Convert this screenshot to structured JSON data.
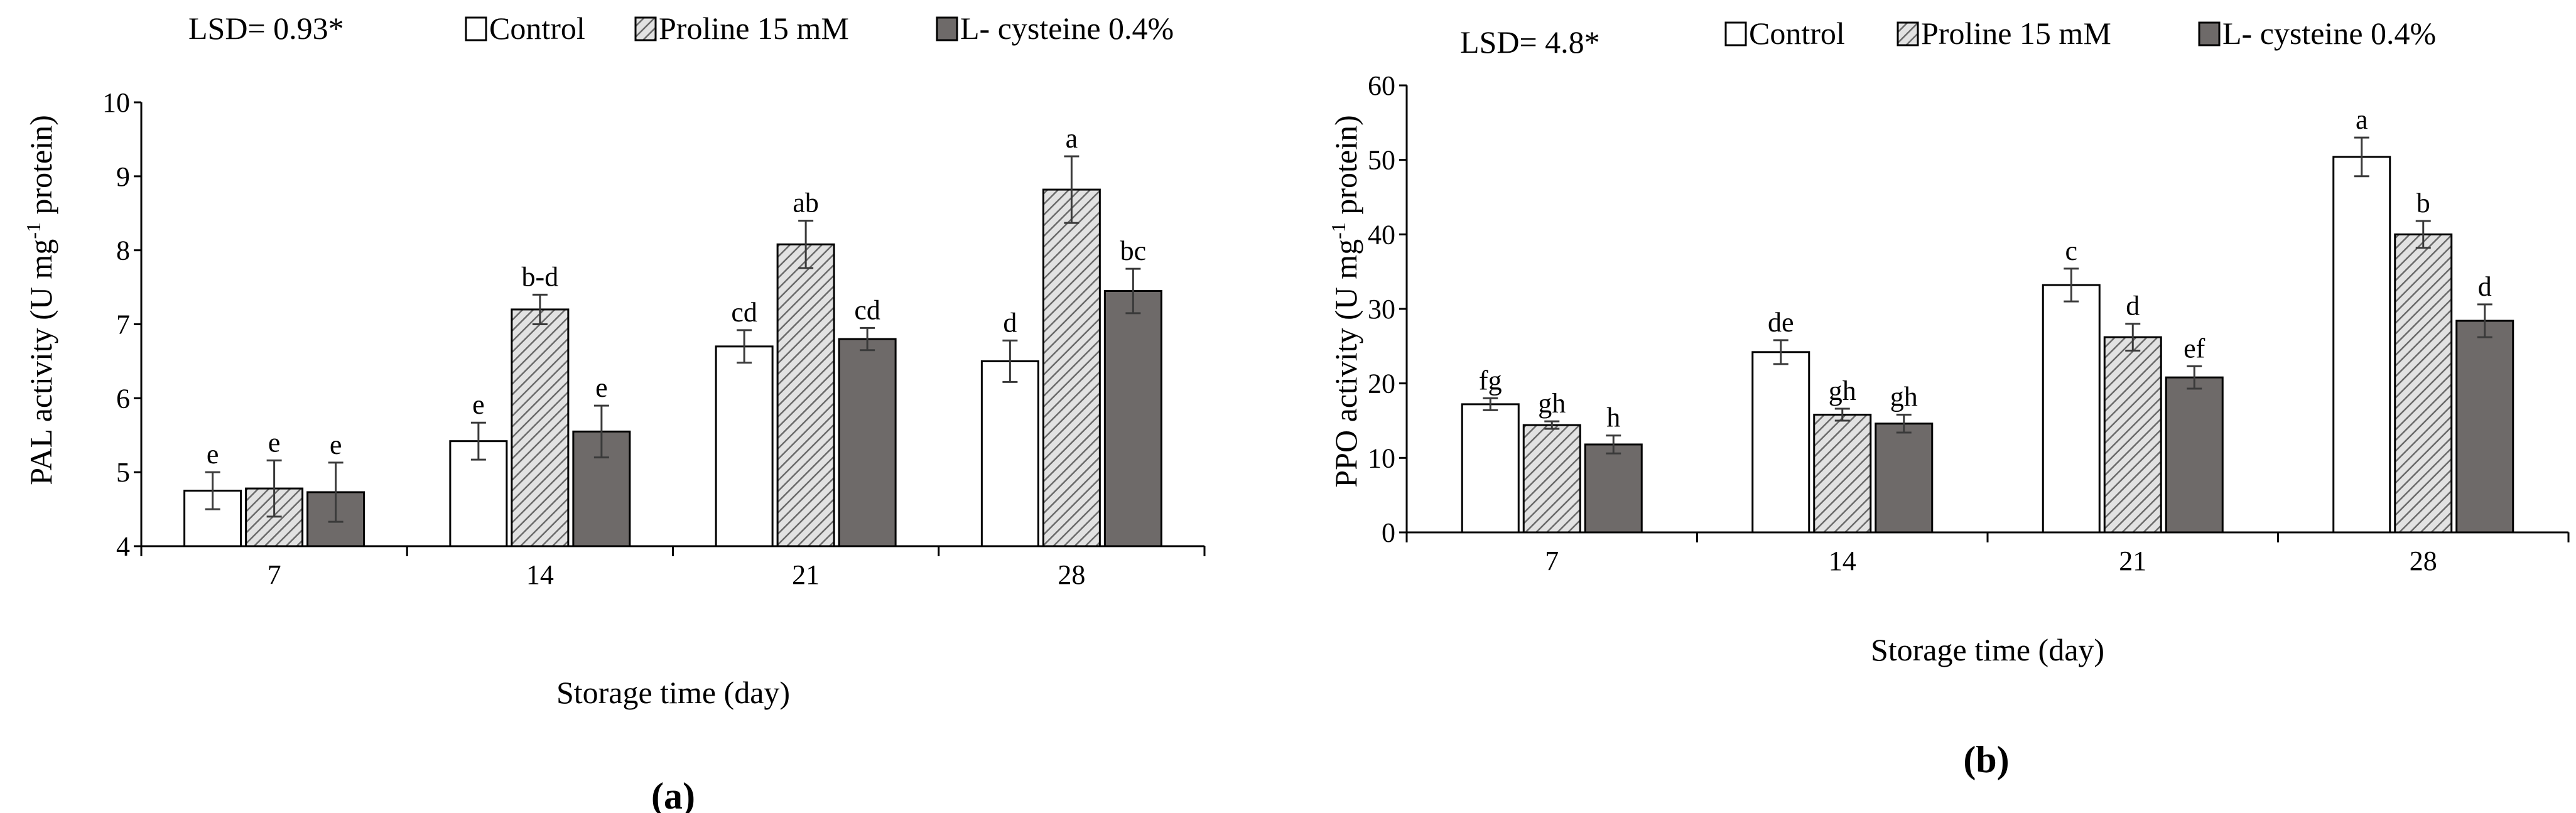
{
  "legend": {
    "items": [
      {
        "name": "Control",
        "label": "Control",
        "fill": "#ffffff"
      },
      {
        "name": "Proline",
        "label": "Proline 15 mM",
        "fill": "hatch"
      },
      {
        "name": "Cysteine",
        "label": "L- cysteine 0.4%",
        "fill": "#6e6a69"
      }
    ]
  },
  "chart_data": [
    {
      "type": "bar",
      "panel": "(a)",
      "lsd": "LSD= 0.93*",
      "title": "",
      "xlabel": "Storage time (day)",
      "ylabel": {
        "pre": "PAL activity  (U mg",
        "sup": "-1",
        "post": " protein)"
      },
      "categories": [
        "7",
        "14",
        "21",
        "28"
      ],
      "ylim": [
        4,
        10
      ],
      "yticks": [
        4,
        5,
        6,
        7,
        8,
        9,
        10
      ],
      "series": [
        {
          "name": "Control",
          "values": [
            4.75,
            5.42,
            6.7,
            6.5
          ],
          "errors": [
            0.25,
            0.25,
            0.22,
            0.28
          ],
          "labels": [
            "e",
            "e",
            "cd",
            "d"
          ]
        },
        {
          "name": "Proline 15 mM",
          "values": [
            4.78,
            7.2,
            8.08,
            8.82
          ],
          "errors": [
            0.38,
            0.2,
            0.32,
            0.45
          ],
          "labels": [
            "e",
            "b-d",
            "ab",
            "a"
          ]
        },
        {
          "name": "L- cysteine 0.4%",
          "values": [
            4.73,
            5.55,
            6.8,
            7.45
          ],
          "errors": [
            0.4,
            0.35,
            0.15,
            0.3
          ],
          "labels": [
            "e",
            "e",
            "cd",
            "bc"
          ]
        }
      ]
    },
    {
      "type": "bar",
      "panel": "(b)",
      "lsd": "LSD= 4.8*",
      "title": "",
      "xlabel": "Storage  time (day)",
      "ylabel": {
        "pre": "PPO activity (U mg",
        "sup": "-1",
        "post": " protein)"
      },
      "categories": [
        "7",
        "14",
        "21",
        "28"
      ],
      "ylim": [
        0,
        60
      ],
      "yticks": [
        0,
        10,
        20,
        30,
        40,
        50,
        60
      ],
      "series": [
        {
          "name": "Control",
          "values": [
            17.2,
            24.2,
            33.2,
            50.4
          ],
          "errors": [
            0.8,
            1.6,
            2.2,
            2.6
          ],
          "labels": [
            "fg",
            "de",
            "c",
            "a"
          ]
        },
        {
          "name": "Proline 15 mM",
          "values": [
            14.4,
            15.8,
            26.2,
            40.0
          ],
          "errors": [
            0.5,
            0.8,
            1.8,
            1.8
          ],
          "labels": [
            "gh",
            "gh",
            "d",
            "b"
          ]
        },
        {
          "name": "L- cysteine 0.4%",
          "values": [
            11.8,
            14.6,
            20.8,
            28.4
          ],
          "errors": [
            1.2,
            1.2,
            1.5,
            2.2
          ],
          "labels": [
            "h",
            "gh",
            "ef",
            "d"
          ]
        }
      ]
    }
  ]
}
